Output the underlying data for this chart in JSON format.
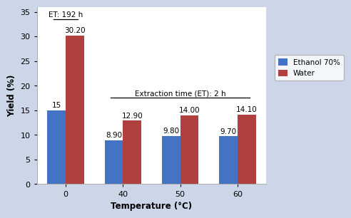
{
  "categories": [
    "0",
    "40",
    "50",
    "60"
  ],
  "ethanol_values": [
    15.0,
    8.9,
    9.8,
    9.7
  ],
  "water_values": [
    30.2,
    12.9,
    14.0,
    14.1
  ],
  "ethanol_color": "#4472C4",
  "water_color": "#B04040",
  "xlabel": "Temperature (°C)",
  "ylabel": "Yield (%)",
  "ylim": [
    0,
    36
  ],
  "yticks": [
    0,
    5,
    10,
    15,
    20,
    25,
    30,
    35
  ],
  "legend_ethanol": "Ethanol 70%",
  "legend_water": "Water",
  "annotation_et192": "ET: 192 h",
  "annotation_et2": "Extraction time (ET): 2 h",
  "bar_width": 0.32,
  "outer_bg": "#cdd5e8",
  "plot_bg_color": "#ffffff",
  "font_size_axis_label": 8.5,
  "font_size_ticks": 8,
  "font_size_bar_labels": 7.5,
  "font_size_annot": 7.5,
  "ethanol_bar_labels": [
    "15",
    "8.90",
    "9.80",
    "9.70"
  ],
  "water_bar_labels": [
    "30.20",
    "12.90",
    "14.00",
    "14.10"
  ]
}
